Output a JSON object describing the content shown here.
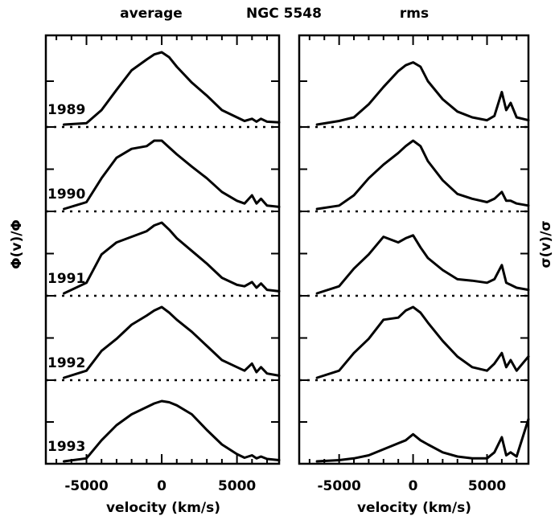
{
  "figure": {
    "title": "NGC 5548",
    "left_header": "average",
    "right_header": "rms",
    "left_ylabel": "Φ(v)/Φ",
    "right_ylabel": "σ(v)/σ",
    "xlabel": "velocity (km/s)"
  },
  "chart_data": [
    {
      "type": "line",
      "title": "average",
      "xlabel": "velocity (km/s)",
      "ylabel": "Φ(v)/Φ",
      "xlim": [
        -7700,
        7800
      ],
      "xticks": [
        -5000,
        0,
        5000
      ],
      "xtick_labels": [
        "-5000",
        "0",
        "5000"
      ],
      "baselines": "dotted",
      "series": [
        {
          "name": "1989",
          "x": [
            -6500,
            -5000,
            -4000,
            -3000,
            -2000,
            -1000,
            -500,
            0,
            500,
            1000,
            2000,
            3000,
            4000,
            5000,
            5500,
            6000,
            6300,
            6600,
            7000,
            7800
          ],
          "values": [
            0.0,
            0.02,
            0.2,
            0.48,
            0.75,
            0.9,
            0.97,
            1.0,
            0.93,
            0.8,
            0.58,
            0.4,
            0.2,
            0.1,
            0.05,
            0.08,
            0.04,
            0.08,
            0.04,
            0.03
          ]
        },
        {
          "name": "1990",
          "x": [
            -6500,
            -5000,
            -4000,
            -3000,
            -2000,
            -1000,
            -500,
            0,
            500,
            1000,
            2000,
            3000,
            4000,
            5000,
            5500,
            6000,
            6300,
            6600,
            7000,
            7800
          ],
          "values": [
            0.0,
            0.1,
            0.45,
            0.75,
            0.88,
            0.92,
            1.0,
            1.0,
            0.9,
            0.8,
            0.62,
            0.45,
            0.25,
            0.12,
            0.08,
            0.2,
            0.08,
            0.15,
            0.05,
            0.03
          ]
        },
        {
          "name": "1991",
          "x": [
            -6500,
            -5000,
            -4000,
            -3000,
            -2000,
            -1000,
            -500,
            0,
            500,
            1000,
            2000,
            3000,
            4000,
            5000,
            5500,
            6000,
            6300,
            6600,
            7000,
            7800
          ],
          "values": [
            0.0,
            0.15,
            0.55,
            0.72,
            0.8,
            0.88,
            0.96,
            1.0,
            0.9,
            0.78,
            0.6,
            0.42,
            0.22,
            0.12,
            0.1,
            0.16,
            0.08,
            0.14,
            0.05,
            0.03
          ]
        },
        {
          "name": "1992",
          "x": [
            -6500,
            -5000,
            -4000,
            -3000,
            -2000,
            -1000,
            -500,
            0,
            500,
            1000,
            2000,
            3000,
            4000,
            5000,
            5500,
            6000,
            6300,
            6600,
            7000,
            7800
          ],
          "values": [
            0.0,
            0.1,
            0.38,
            0.55,
            0.75,
            0.88,
            0.95,
            1.0,
            0.92,
            0.82,
            0.65,
            0.45,
            0.25,
            0.15,
            0.1,
            0.2,
            0.08,
            0.15,
            0.06,
            0.03
          ]
        },
        {
          "name": "1993",
          "x": [
            -6500,
            -5000,
            -4000,
            -3000,
            -2000,
            -1000,
            -500,
            0,
            500,
            1000,
            2000,
            3000,
            4000,
            5000,
            5500,
            6000,
            6300,
            6600,
            7000,
            7800
          ],
          "values": [
            0.0,
            0.05,
            0.35,
            0.6,
            0.78,
            0.9,
            0.96,
            1.0,
            0.98,
            0.93,
            0.78,
            0.52,
            0.28,
            0.12,
            0.06,
            0.1,
            0.05,
            0.08,
            0.04,
            0.02
          ]
        }
      ]
    },
    {
      "type": "line",
      "title": "rms",
      "xlabel": "velocity (km/s)",
      "ylabel": "σ(v)/σ",
      "xlim": [
        -7700,
        7800
      ],
      "xticks": [
        -5000,
        0,
        5000
      ],
      "xtick_labels": [
        "-5000",
        "0",
        "5000"
      ],
      "baselines": "dotted",
      "series": [
        {
          "name": "1989",
          "x": [
            -6500,
            -5000,
            -4000,
            -3000,
            -2000,
            -1000,
            -500,
            0,
            500,
            1000,
            2000,
            3000,
            4000,
            5000,
            5500,
            6000,
            6300,
            6600,
            7000,
            7800
          ],
          "values": [
            0.0,
            0.05,
            0.1,
            0.28,
            0.52,
            0.74,
            0.82,
            0.86,
            0.8,
            0.6,
            0.35,
            0.18,
            0.1,
            0.06,
            0.12,
            0.45,
            0.2,
            0.3,
            0.1,
            0.06
          ]
        },
        {
          "name": "1990",
          "x": [
            -6500,
            -5000,
            -4000,
            -3000,
            -2000,
            -1000,
            -500,
            0,
            500,
            1000,
            2000,
            3000,
            4000,
            5000,
            5500,
            6000,
            6300,
            6600,
            7000,
            7800
          ],
          "values": [
            0.0,
            0.05,
            0.2,
            0.45,
            0.65,
            0.82,
            0.92,
            1.0,
            0.92,
            0.7,
            0.42,
            0.22,
            0.15,
            0.1,
            0.15,
            0.25,
            0.12,
            0.12,
            0.08,
            0.05
          ]
        },
        {
          "name": "1991",
          "x": [
            -6500,
            -5000,
            -4000,
            -3000,
            -2000,
            -1000,
            -500,
            0,
            500,
            1000,
            2000,
            3000,
            4000,
            5000,
            5500,
            6000,
            6300,
            6600,
            7000,
            7800
          ],
          "values": [
            0.0,
            0.1,
            0.35,
            0.55,
            0.8,
            0.72,
            0.78,
            0.82,
            0.65,
            0.5,
            0.33,
            0.2,
            0.18,
            0.15,
            0.2,
            0.4,
            0.15,
            0.12,
            0.08,
            0.05
          ]
        },
        {
          "name": "1992",
          "x": [
            -6500,
            -5000,
            -4000,
            -3000,
            -2000,
            -1000,
            -500,
            0,
            500,
            1000,
            2000,
            3000,
            4000,
            5000,
            5500,
            6000,
            6300,
            6600,
            7000,
            7800
          ],
          "values": [
            0.0,
            0.1,
            0.35,
            0.55,
            0.82,
            0.85,
            0.95,
            1.0,
            0.92,
            0.78,
            0.52,
            0.3,
            0.15,
            0.1,
            0.2,
            0.35,
            0.15,
            0.25,
            0.1,
            0.3
          ]
        },
        {
          "name": "1993",
          "x": [
            -6500,
            -5000,
            -4000,
            -3000,
            -2000,
            -1000,
            -500,
            0,
            500,
            1000,
            2000,
            3000,
            4000,
            5000,
            5500,
            6000,
            6300,
            6600,
            7000,
            7800
          ],
          "values": [
            0.0,
            0.02,
            0.05,
            0.1,
            0.2,
            0.3,
            0.35,
            0.45,
            0.35,
            0.28,
            0.15,
            0.08,
            0.05,
            0.05,
            0.15,
            0.4,
            0.1,
            0.15,
            0.08,
            0.7
          ]
        }
      ]
    }
  ]
}
